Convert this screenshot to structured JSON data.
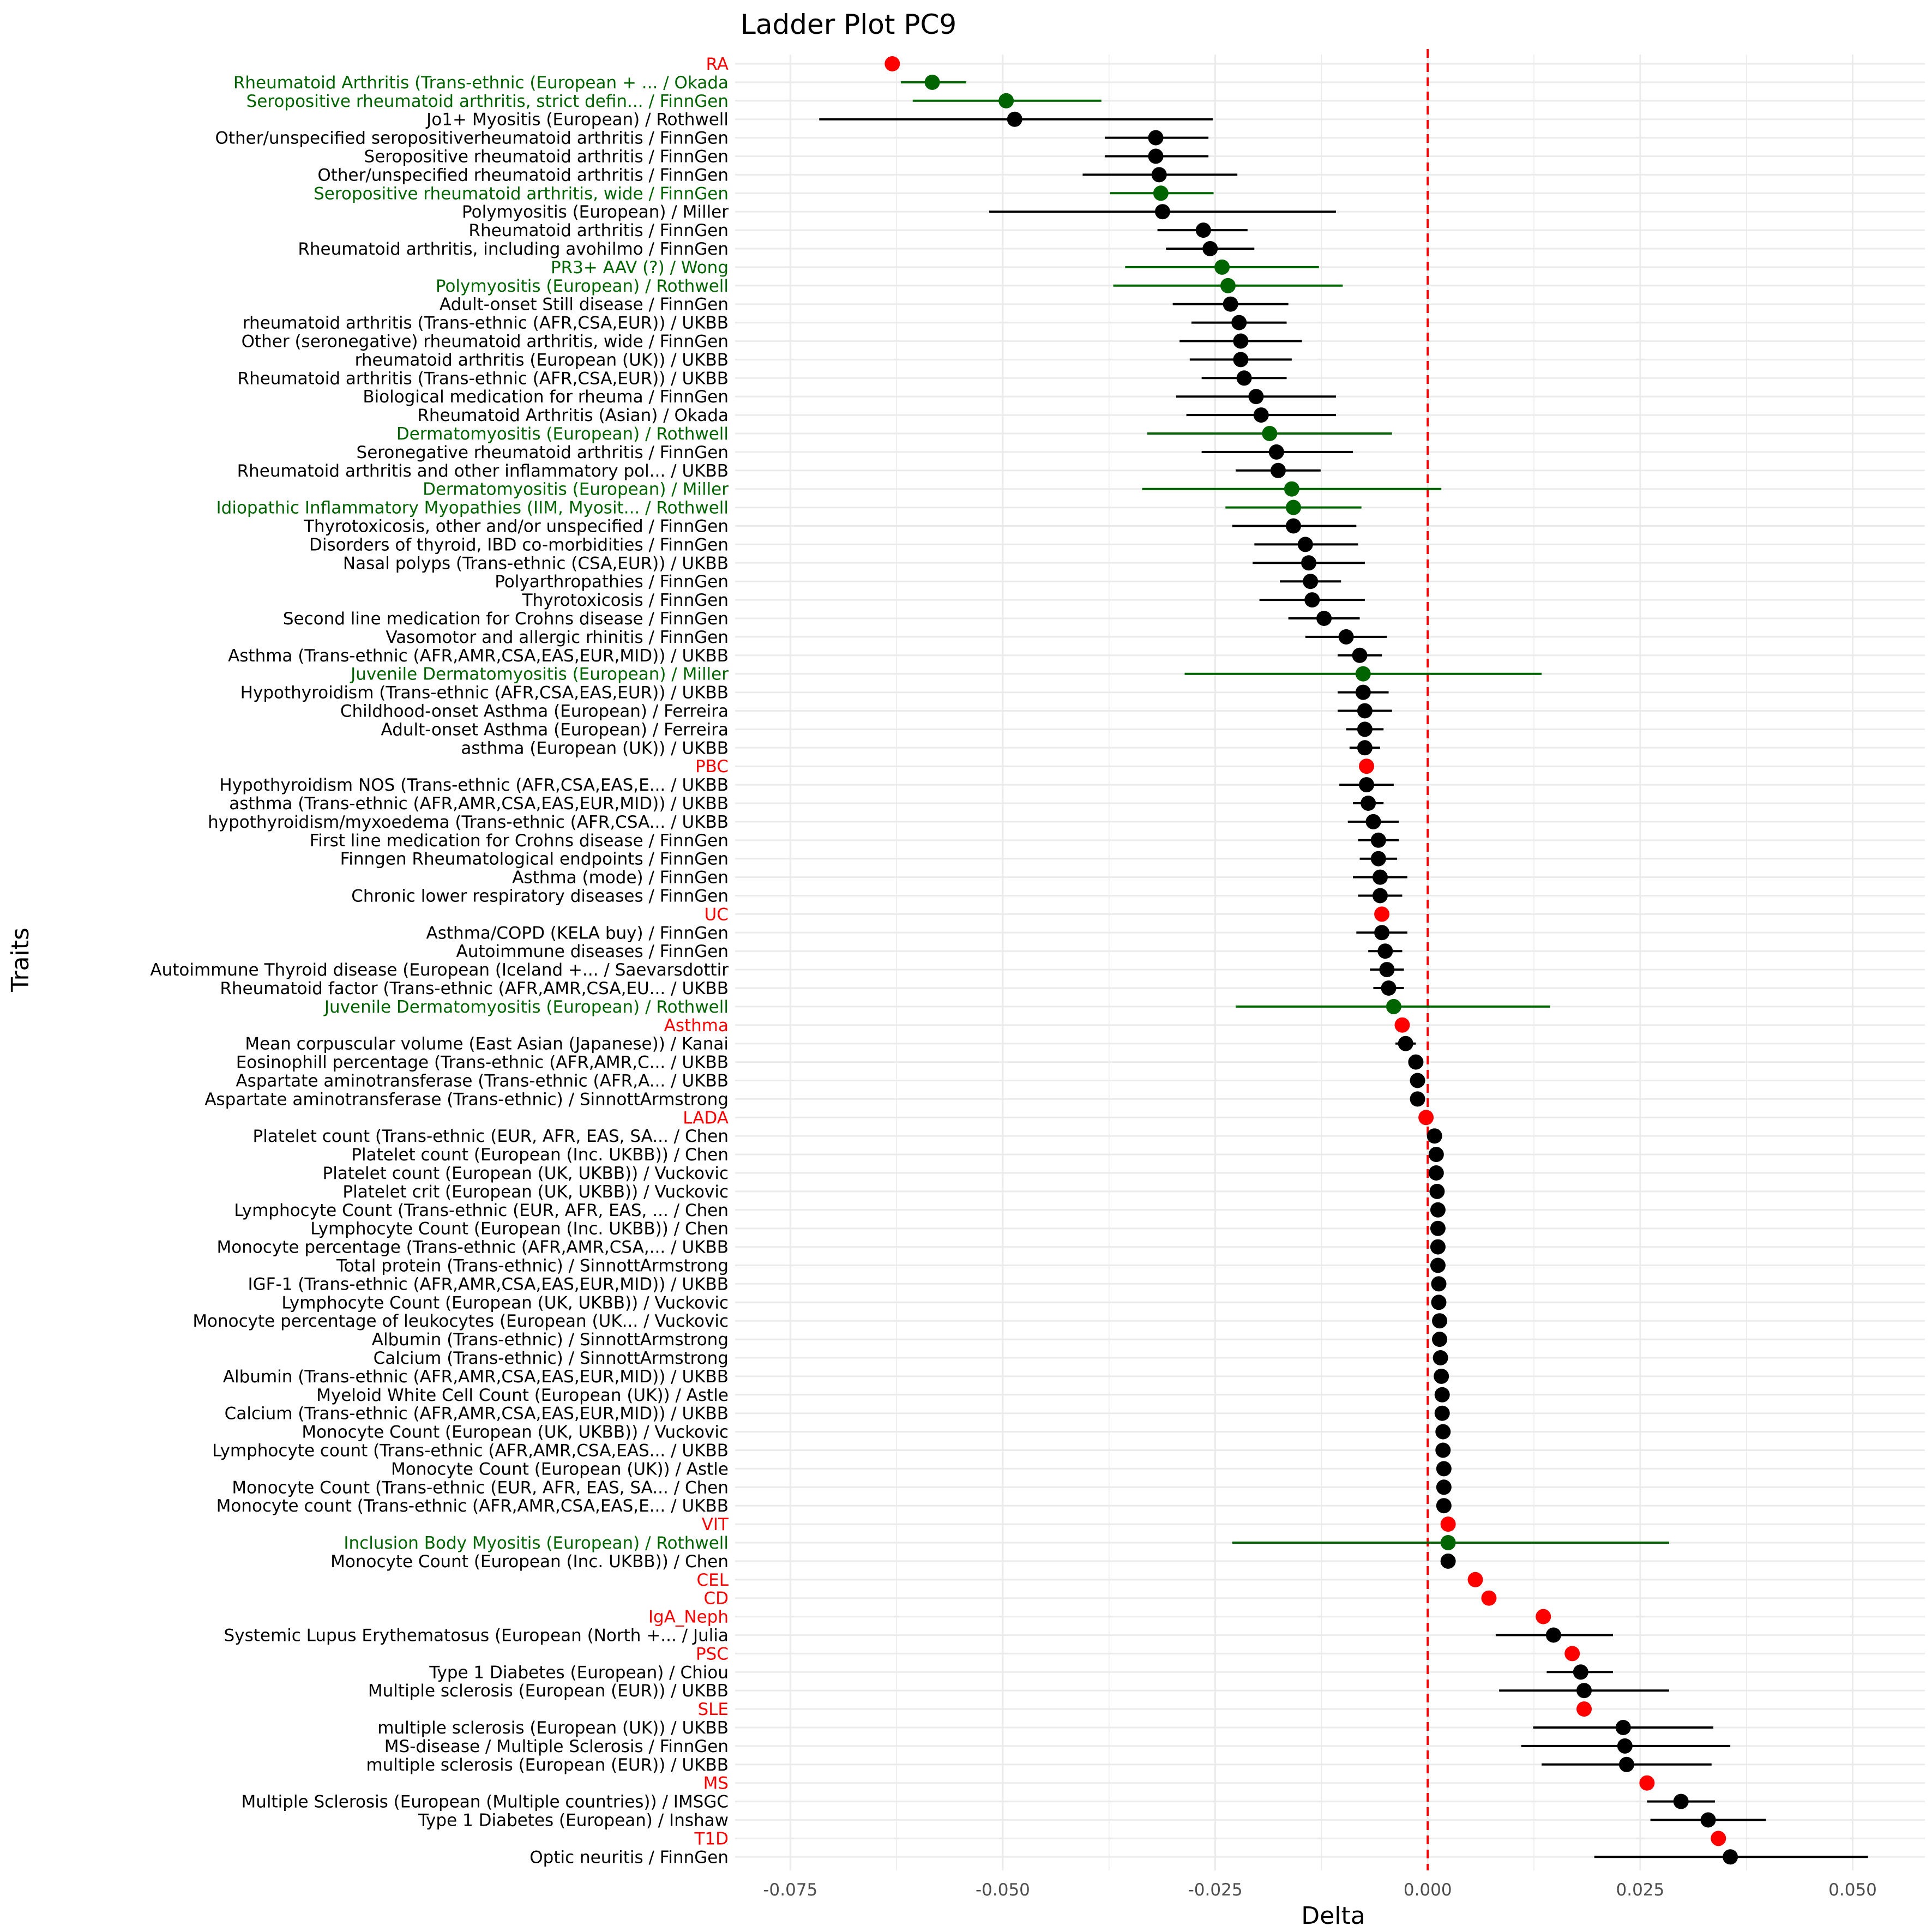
{
  "chart_data": {
    "type": "scatter",
    "subtype": "forest/ladder plot with horizontal error bars",
    "title": "Ladder Plot PC9",
    "xlabel": "Delta",
    "ylabel": "Traits",
    "xlim": [
      -0.0815,
      0.0585
    ],
    "xticks": [
      -0.075,
      -0.05,
      -0.025,
      0.0,
      0.025,
      0.05
    ],
    "xtick_labels": [
      "-0.075",
      "-0.050",
      "-0.025",
      "0.000",
      "0.025",
      "0.050"
    ],
    "reference_line": {
      "x": 0,
      "style": "dashed",
      "color": "#ff0000"
    },
    "grid": true,
    "legend": "none",
    "colors": {
      "red": "#ff0000",
      "green": "#006400",
      "black": "#000000",
      "grid": "#ebebeb"
    },
    "points": [
      {
        "label": "RA",
        "color": "red",
        "delta": -0.063,
        "low": null,
        "high": null
      },
      {
        "label": "Rheumatoid Arthritis (Trans-ethnic (European + ... / Okada",
        "color": "green",
        "delta": -0.0583,
        "low": -0.062,
        "high": -0.0543
      },
      {
        "label": "Seropositive rheumatoid arthritis, strict defin... / FinnGen",
        "color": "green",
        "delta": -0.0496,
        "low": -0.0606,
        "high": -0.0384
      },
      {
        "label": "Jo1+ Myositis (European) / Rothwell",
        "color": "black",
        "delta": -0.0486,
        "low": -0.0716,
        "high": -0.0253
      },
      {
        "label": "Other/unspecified seropositiverheumatoid arthritis / FinnGen",
        "color": "black",
        "delta": -0.032,
        "low": -0.038,
        "high": -0.0258
      },
      {
        "label": "Seropositive rheumatoid arthritis / FinnGen",
        "color": "black",
        "delta": -0.032,
        "low": -0.038,
        "high": -0.0258
      },
      {
        "label": "Other/unspecified rheumatoid arthritis / FinnGen",
        "color": "black",
        "delta": -0.0316,
        "low": -0.0406,
        "high": -0.0224
      },
      {
        "label": "Seropositive rheumatoid arthritis, wide / FinnGen",
        "color": "green",
        "delta": -0.0314,
        "low": -0.0374,
        "high": -0.0252
      },
      {
        "label": "Polymyositis (European) / Miller",
        "color": "black",
        "delta": -0.0312,
        "low": -0.0516,
        "high": -0.0108
      },
      {
        "label": "Rheumatoid arthritis / FinnGen",
        "color": "black",
        "delta": -0.0264,
        "low": -0.0318,
        "high": -0.0212
      },
      {
        "label": "Rheumatoid arthritis, including avohilmo / FinnGen",
        "color": "black",
        "delta": -0.0256,
        "low": -0.0308,
        "high": -0.0204
      },
      {
        "label": "PR3+ AAV (?) / Wong",
        "color": "green",
        "delta": -0.0242,
        "low": -0.0356,
        "high": -0.0128
      },
      {
        "label": "Polymyositis (European) / Rothwell",
        "color": "green",
        "delta": -0.0235,
        "low": -0.037,
        "high": -0.01
      },
      {
        "label": "Adult-onset Still disease / FinnGen",
        "color": "black",
        "delta": -0.0232,
        "low": -0.03,
        "high": -0.0164
      },
      {
        "label": "rheumatoid arthritis (Trans-ethnic (AFR,CSA,EUR)) / UKBB",
        "color": "black",
        "delta": -0.0222,
        "low": -0.0278,
        "high": -0.0166
      },
      {
        "label": "Other (seronegative) rheumatoid arthritis, wide / FinnGen",
        "color": "black",
        "delta": -0.022,
        "low": -0.0292,
        "high": -0.0148
      },
      {
        "label": "rheumatoid arthritis (European (UK)) / UKBB",
        "color": "black",
        "delta": -0.022,
        "low": -0.028,
        "high": -0.016
      },
      {
        "label": "Rheumatoid arthritis (Trans-ethnic (AFR,CSA,EUR)) / UKBB",
        "color": "black",
        "delta": -0.0216,
        "low": -0.0266,
        "high": -0.0166
      },
      {
        "label": "Biological medication for rheuma / FinnGen",
        "color": "black",
        "delta": -0.0202,
        "low": -0.0296,
        "high": -0.0108
      },
      {
        "label": "Rheumatoid Arthritis (Asian) / Okada",
        "color": "black",
        "delta": -0.0196,
        "low": -0.0284,
        "high": -0.0108
      },
      {
        "label": "Dermatomyositis (European) / Rothwell",
        "color": "green",
        "delta": -0.0186,
        "low": -0.033,
        "high": -0.0042
      },
      {
        "label": "Seronegative rheumatoid arthritis / FinnGen",
        "color": "black",
        "delta": -0.0178,
        "low": -0.0266,
        "high": -0.0088
      },
      {
        "label": "Rheumatoid arthritis and other inflammatory pol... / UKBB",
        "color": "black",
        "delta": -0.0176,
        "low": -0.0226,
        "high": -0.0126
      },
      {
        "label": "Dermatomyositis (European) / Miller",
        "color": "green",
        "delta": -0.016,
        "low": -0.0336,
        "high": 0.0016
      },
      {
        "label": "Idiopathic Inflammatory Myopathies (IIM, Myosit... / Rothwell",
        "color": "green",
        "delta": -0.0158,
        "low": -0.0238,
        "high": -0.0078
      },
      {
        "label": "Thyrotoxicosis, other and/or unspecified / FinnGen",
        "color": "black",
        "delta": -0.0158,
        "low": -0.023,
        "high": -0.0084
      },
      {
        "label": "Disorders of thyroid, IBD co-morbidities / FinnGen",
        "color": "black",
        "delta": -0.0144,
        "low": -0.0204,
        "high": -0.0082
      },
      {
        "label": "Nasal polyps (Trans-ethnic (CSA,EUR)) / UKBB",
        "color": "black",
        "delta": -0.014,
        "low": -0.0206,
        "high": -0.0074
      },
      {
        "label": "Polyarthropathies / FinnGen",
        "color": "black",
        "delta": -0.0138,
        "low": -0.0174,
        "high": -0.0102
      },
      {
        "label": "Thyrotoxicosis / FinnGen",
        "color": "black",
        "delta": -0.0136,
        "low": -0.0198,
        "high": -0.0074
      },
      {
        "label": "Second line medication for Crohns disease / FinnGen",
        "color": "black",
        "delta": -0.0122,
        "low": -0.0164,
        "high": -0.008
      },
      {
        "label": "Vasomotor and allergic rhinitis / FinnGen",
        "color": "black",
        "delta": -0.0096,
        "low": -0.0144,
        "high": -0.0048
      },
      {
        "label": "Asthma (Trans-ethnic (AFR,AMR,CSA,EAS,EUR,MID)) / UKBB",
        "color": "black",
        "delta": -0.008,
        "low": -0.0106,
        "high": -0.0054
      },
      {
        "label": "Juvenile Dermatomyositis (European) / Miller",
        "color": "green",
        "delta": -0.0076,
        "low": -0.0286,
        "high": 0.0134
      },
      {
        "label": "Hypothyroidism (Trans-ethnic (AFR,CSA,EAS,EUR)) / UKBB",
        "color": "black",
        "delta": -0.0076,
        "low": -0.0106,
        "high": -0.0046
      },
      {
        "label": "Childhood-onset Asthma (European) / Ferreira",
        "color": "black",
        "delta": -0.0074,
        "low": -0.0106,
        "high": -0.0042
      },
      {
        "label": "Adult-onset Asthma (European) / Ferreira",
        "color": "black",
        "delta": -0.0074,
        "low": -0.0096,
        "high": -0.0052
      },
      {
        "label": "asthma (European (UK)) / UKBB",
        "color": "black",
        "delta": -0.0074,
        "low": -0.0092,
        "high": -0.0056
      },
      {
        "label": "PBC",
        "color": "red",
        "delta": -0.0072,
        "low": null,
        "high": null
      },
      {
        "label": "Hypothyroidism NOS (Trans-ethnic (AFR,CSA,EAS,E... / UKBB",
        "color": "black",
        "delta": -0.0072,
        "low": -0.0104,
        "high": -0.004
      },
      {
        "label": "asthma (Trans-ethnic (AFR,AMR,CSA,EAS,EUR,MID)) / UKBB",
        "color": "black",
        "delta": -0.007,
        "low": -0.0088,
        "high": -0.0052
      },
      {
        "label": "hypothyroidism/myxoedema (Trans-ethnic (AFR,CSA... / UKBB",
        "color": "black",
        "delta": -0.0064,
        "low": -0.0094,
        "high": -0.0034
      },
      {
        "label": "First line medication for Crohns disease / FinnGen",
        "color": "black",
        "delta": -0.0058,
        "low": -0.0082,
        "high": -0.0034
      },
      {
        "label": "Finngen Rheumatological endpoints / FinnGen",
        "color": "black",
        "delta": -0.0058,
        "low": -0.008,
        "high": -0.0036
      },
      {
        "label": "Asthma (mode) / FinnGen",
        "color": "black",
        "delta": -0.0056,
        "low": -0.0088,
        "high": -0.0024
      },
      {
        "label": "Chronic lower respiratory diseases / FinnGen",
        "color": "black",
        "delta": -0.0056,
        "low": -0.0082,
        "high": -0.003
      },
      {
        "label": "UC",
        "color": "red",
        "delta": -0.0054,
        "low": null,
        "high": null
      },
      {
        "label": "Asthma/COPD (KELA buy) / FinnGen",
        "color": "black",
        "delta": -0.0054,
        "low": -0.0084,
        "high": -0.0024
      },
      {
        "label": "Autoimmune diseases / FinnGen",
        "color": "black",
        "delta": -0.005,
        "low": -0.007,
        "high": -0.003
      },
      {
        "label": "Autoimmune Thyroid disease (European (Iceland +... / Saevarsdottir",
        "color": "black",
        "delta": -0.0048,
        "low": -0.0068,
        "high": -0.0028
      },
      {
        "label": "Rheumatoid factor (Trans-ethnic (AFR,AMR,CSA,EU... / UKBB",
        "color": "black",
        "delta": -0.0046,
        "low": -0.0064,
        "high": -0.0028
      },
      {
        "label": "Juvenile Dermatomyositis (European) / Rothwell",
        "color": "green",
        "delta": -0.004,
        "low": -0.0226,
        "high": 0.0144
      },
      {
        "label": "Asthma",
        "color": "red",
        "delta": -0.003,
        "low": null,
        "high": null
      },
      {
        "label": "Mean corpuscular volume (East Asian (Japanese)) / Kanai",
        "color": "black",
        "delta": -0.0026,
        "low": -0.0038,
        "high": -0.0014
      },
      {
        "label": "Eosinophill percentage (Trans-ethnic (AFR,AMR,C... / UKBB",
        "color": "black",
        "delta": -0.0014,
        "low": -0.002,
        "high": -0.0008
      },
      {
        "label": "Aspartate aminotransferase (Trans-ethnic (AFR,A... / UKBB",
        "color": "black",
        "delta": -0.0012,
        "low": -0.0018,
        "high": -0.0006
      },
      {
        "label": "Aspartate aminotransferase (Trans-ethnic) / SinnottArmstrong",
        "color": "black",
        "delta": -0.0012,
        "low": -0.0018,
        "high": -0.0006
      },
      {
        "label": "LADA",
        "color": "red",
        "delta": -0.0002,
        "low": null,
        "high": null
      },
      {
        "label": "Platelet count (Trans-ethnic (EUR, AFR, EAS, SA... / Chen",
        "color": "black",
        "delta": 0.0008,
        "low": 0.0004,
        "high": 0.0012
      },
      {
        "label": "Platelet count (European (Inc. UKBB)) / Chen",
        "color": "black",
        "delta": 0.001,
        "low": 0.0006,
        "high": 0.0014
      },
      {
        "label": "Platelet count (European (UK, UKBB)) / Vuckovic",
        "color": "black",
        "delta": 0.001,
        "low": 0.0006,
        "high": 0.0014
      },
      {
        "label": "Platelet crit (European (UK, UKBB)) / Vuckovic",
        "color": "black",
        "delta": 0.0011,
        "low": 0.0007,
        "high": 0.0015
      },
      {
        "label": "Lymphocyte Count (Trans-ethnic (EUR, AFR, EAS, ... / Chen",
        "color": "black",
        "delta": 0.0012,
        "low": 0.0008,
        "high": 0.0016
      },
      {
        "label": "Lymphocyte Count (European (Inc. UKBB)) / Chen",
        "color": "black",
        "delta": 0.0012,
        "low": 0.0008,
        "high": 0.0016
      },
      {
        "label": "Monocyte percentage (Trans-ethnic (AFR,AMR,CSA,... / UKBB",
        "color": "black",
        "delta": 0.0012,
        "low": 0.0008,
        "high": 0.0016
      },
      {
        "label": "Total protein (Trans-ethnic) / SinnottArmstrong",
        "color": "black",
        "delta": 0.0012,
        "low": 0.0008,
        "high": 0.0016
      },
      {
        "label": "IGF-1 (Trans-ethnic (AFR,AMR,CSA,EAS,EUR,MID)) / UKBB",
        "color": "black",
        "delta": 0.0013,
        "low": 0.0009,
        "high": 0.0017
      },
      {
        "label": "Lymphocyte Count (European (UK, UKBB)) / Vuckovic",
        "color": "black",
        "delta": 0.0013,
        "low": 0.0009,
        "high": 0.0017
      },
      {
        "label": "Monocyte percentage of leukocytes (European (UK... / Vuckovic",
        "color": "black",
        "delta": 0.0014,
        "low": 0.001,
        "high": 0.0018
      },
      {
        "label": "Albumin (Trans-ethnic) / SinnottArmstrong",
        "color": "black",
        "delta": 0.0014,
        "low": 0.001,
        "high": 0.0018
      },
      {
        "label": "Calcium (Trans-ethnic) / SinnottArmstrong",
        "color": "black",
        "delta": 0.0015,
        "low": 0.0011,
        "high": 0.0019
      },
      {
        "label": "Albumin (Trans-ethnic (AFR,AMR,CSA,EAS,EUR,MID)) / UKBB",
        "color": "black",
        "delta": 0.0016,
        "low": 0.0012,
        "high": 0.002
      },
      {
        "label": "Myeloid White Cell Count (European (UK)) / Astle",
        "color": "black",
        "delta": 0.0017,
        "low": 0.0013,
        "high": 0.0021
      },
      {
        "label": "Calcium (Trans-ethnic (AFR,AMR,CSA,EAS,EUR,MID)) / UKBB",
        "color": "black",
        "delta": 0.0017,
        "low": 0.0013,
        "high": 0.0021
      },
      {
        "label": "Monocyte Count (European (UK, UKBB)) / Vuckovic",
        "color": "black",
        "delta": 0.0018,
        "low": 0.0014,
        "high": 0.0022
      },
      {
        "label": "Lymphocyte count (Trans-ethnic (AFR,AMR,CSA,EAS... / UKBB",
        "color": "black",
        "delta": 0.0018,
        "low": 0.0014,
        "high": 0.0022
      },
      {
        "label": "Monocyte Count (European (UK)) / Astle",
        "color": "black",
        "delta": 0.0019,
        "low": 0.0015,
        "high": 0.0023
      },
      {
        "label": "Monocyte Count (Trans-ethnic (EUR, AFR, EAS, SA... / Chen",
        "color": "black",
        "delta": 0.0019,
        "low": 0.0015,
        "high": 0.0023
      },
      {
        "label": "Monocyte count (Trans-ethnic (AFR,AMR,CSA,EAS,E... / UKBB",
        "color": "black",
        "delta": 0.0019,
        "low": 0.0015,
        "high": 0.0023
      },
      {
        "label": "VIT",
        "color": "red",
        "delta": 0.0024,
        "low": null,
        "high": null
      },
      {
        "label": "Inclusion Body Myositis (European) / Rothwell",
        "color": "green",
        "delta": 0.0024,
        "low": -0.023,
        "high": 0.0284
      },
      {
        "label": "Monocyte Count (European (Inc. UKBB)) / Chen",
        "color": "black",
        "delta": 0.0024,
        "low": 0.002,
        "high": 0.0028
      },
      {
        "label": "CEL",
        "color": "red",
        "delta": 0.0056,
        "low": null,
        "high": null
      },
      {
        "label": "CD",
        "color": "red",
        "delta": 0.0072,
        "low": null,
        "high": null
      },
      {
        "label": "IgA_Neph",
        "color": "red",
        "delta": 0.0136,
        "low": null,
        "high": null
      },
      {
        "label": "Systemic Lupus Erythematosus (European (North +... / Julia",
        "color": "black",
        "delta": 0.0148,
        "low": 0.008,
        "high": 0.0218
      },
      {
        "label": "PSC",
        "color": "red",
        "delta": 0.017,
        "low": null,
        "high": null
      },
      {
        "label": "Type 1 Diabetes (European) / Chiou",
        "color": "black",
        "delta": 0.018,
        "low": 0.014,
        "high": 0.0218
      },
      {
        "label": "Multiple sclerosis (European (EUR)) / UKBB",
        "color": "black",
        "delta": 0.0184,
        "low": 0.0084,
        "high": 0.0284
      },
      {
        "label": "SLE",
        "color": "red",
        "delta": 0.0184,
        "low": null,
        "high": null
      },
      {
        "label": "multiple sclerosis (European (UK)) / UKBB",
        "color": "black",
        "delta": 0.023,
        "low": 0.0124,
        "high": 0.0336
      },
      {
        "label": "MS-disease / Multiple Sclerosis / FinnGen",
        "color": "black",
        "delta": 0.0232,
        "low": 0.011,
        "high": 0.0356
      },
      {
        "label": "multiple sclerosis (European (EUR)) / UKBB",
        "color": "black",
        "delta": 0.0234,
        "low": 0.0134,
        "high": 0.0334
      },
      {
        "label": "MS",
        "color": "red",
        "delta": 0.0258,
        "low": null,
        "high": null
      },
      {
        "label": "Multiple Sclerosis (European (Multiple countries)) / IMSGC",
        "color": "black",
        "delta": 0.0298,
        "low": 0.0258,
        "high": 0.0338
      },
      {
        "label": "Type 1 Diabetes (European) / Inshaw",
        "color": "black",
        "delta": 0.033,
        "low": 0.0262,
        "high": 0.0398
      },
      {
        "label": "T1D",
        "color": "red",
        "delta": 0.0342,
        "low": null,
        "high": null
      },
      {
        "label": "Optic neuritis / FinnGen",
        "color": "black",
        "delta": 0.0356,
        "low": 0.0196,
        "high": 0.0518
      }
    ]
  }
}
